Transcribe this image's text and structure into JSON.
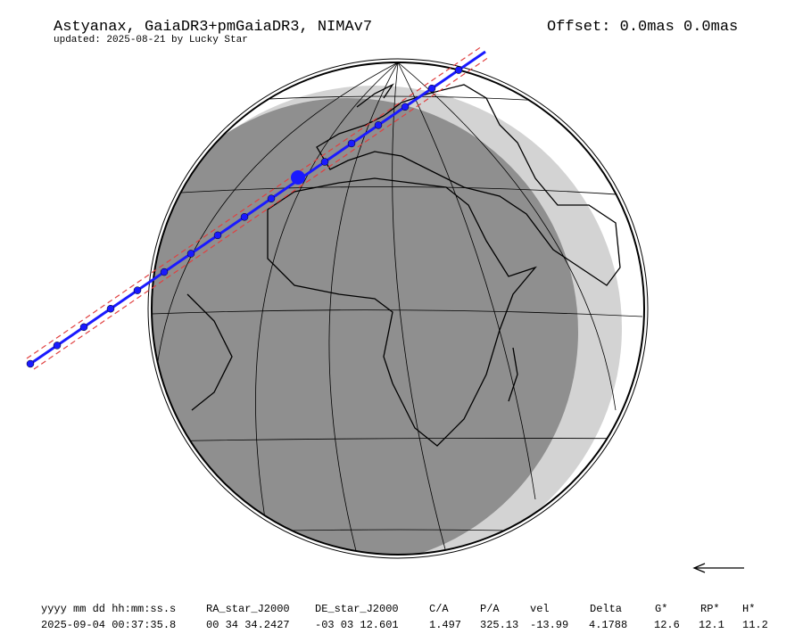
{
  "header": {
    "title": "Astyanax, GaiaDR3+pmGaiaDR3, NIMAv7",
    "updated": "updated: 2025-08-21 by Lucky Star",
    "offset": "Offset: 0.0mas 0.0mas"
  },
  "table": {
    "columns": [
      "yyyy mm dd hh:mm:ss.s",
      "RA_star_J2000",
      "DE_star_J2000",
      "C/A",
      "P/A",
      "vel",
      "Delta",
      "G*",
      "RP*",
      "H*"
    ],
    "values": [
      "2025-09-04 00:37:35.8",
      "00 34 34.2427",
      "-03 03 12.601",
      "1.497",
      "325.13",
      "-13.99",
      "4.1788",
      "12.6",
      "12.1",
      "11.2"
    ]
  }
}
